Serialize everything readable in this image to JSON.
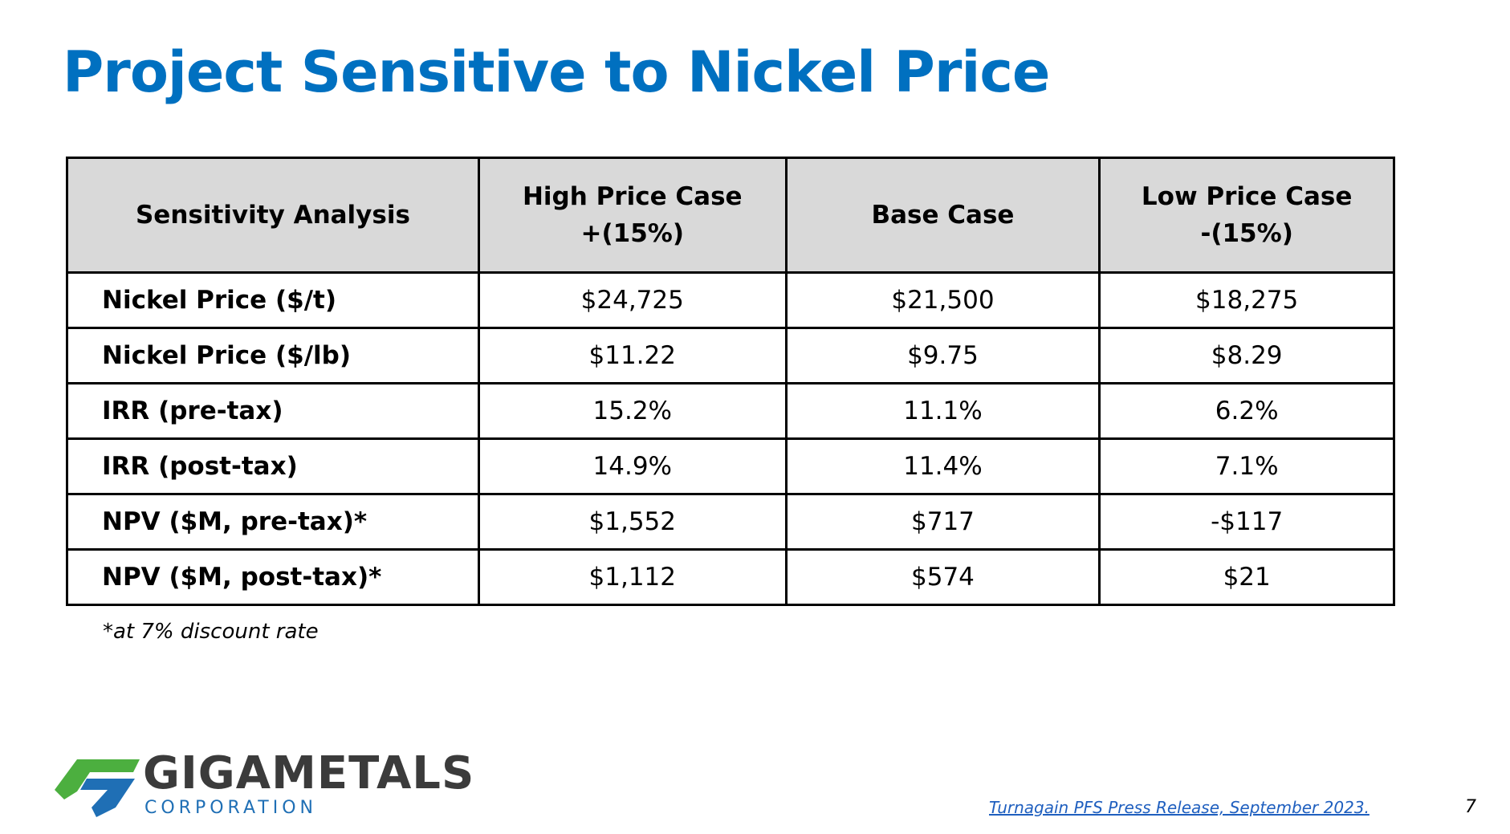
{
  "slide": {
    "title": "Project Sensitive to Nickel Price",
    "page_number": "7"
  },
  "table": {
    "header": {
      "col1": "Sensitivity Analysis",
      "col2_line1": "High Price Case",
      "col2_line2": "+(15%)",
      "col3": "Base Case",
      "col4_line1": "Low Price Case",
      "col4_line2": "-(15%)"
    },
    "rows": [
      {
        "label": "Nickel Price ($/t)",
        "high": "$24,725",
        "base": "$21,500",
        "low": "$18,275"
      },
      {
        "label": "Nickel Price ($/lb)",
        "high": "$11.22",
        "base": "$9.75",
        "low": "$8.29"
      },
      {
        "label": "IRR (pre-tax)",
        "high": "15.2%",
        "base": "11.1%",
        "low": "6.2%"
      },
      {
        "label": "IRR (post-tax)",
        "high": "14.9%",
        "base": "11.4%",
        "low": "7.1%"
      },
      {
        "label": "NPV ($M, pre-tax)*",
        "high": "$1,552",
        "base": "$717",
        "low": "-$117"
      },
      {
        "label": "NPV ($M, post-tax)*",
        "high": "$1,112",
        "base": "$574",
        "low": "$21"
      }
    ]
  },
  "footnote": "*at 7% discount rate",
  "logo": {
    "name": "GIGAMETALS",
    "subtitle": "CORPORATION"
  },
  "source": {
    "text": "Turnagain PFS Press Release, September 2023."
  },
  "colors": {
    "title_blue": "#0070c0",
    "logo_green": "#4caf3f",
    "logo_blue": "#1f6fb5",
    "logo_dark": "#3b3b3b",
    "link_blue": "#1f5fbf",
    "header_gray": "#d9d9d9"
  },
  "icons": {
    "logo_mark": "gigametals-logo-icon"
  }
}
